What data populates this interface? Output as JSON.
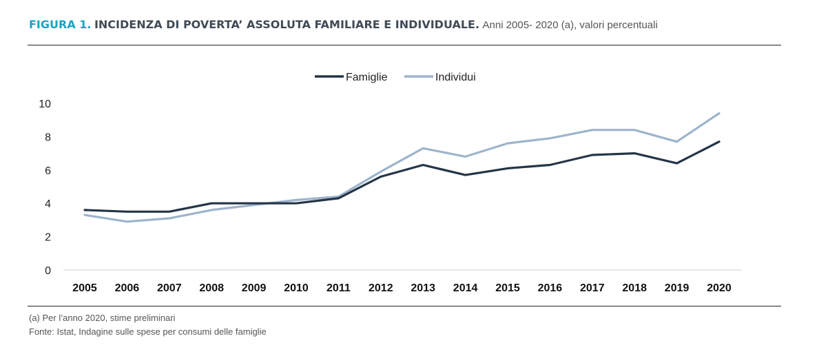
{
  "header": {
    "figure_label": "FIGURA 1.",
    "title": "INCIDENZA DI POVERTA’ ASSOLUTA FAMILIARE E INDIVIDUALE.",
    "subtitle": "Anni 2005- 2020 (a), valori percentuali"
  },
  "footer": {
    "note": "(a)   Per l’anno 2020, stime preliminari",
    "source": "Fonte: Istat, Indagine sulle spese per consumi delle famiglie"
  },
  "chart_data": {
    "type": "line",
    "title": "",
    "xlabel": "",
    "ylabel": "",
    "ylim": [
      0,
      10
    ],
    "yticks": [
      "0",
      "2",
      "4",
      "6",
      "8",
      "10"
    ],
    "categories": [
      "2005",
      "2006",
      "2007",
      "2008",
      "2009",
      "2010",
      "2011",
      "2012",
      "2013",
      "2014",
      "2015",
      "2016",
      "2017",
      "2018",
      "2019",
      "2020"
    ],
    "series": [
      {
        "name": "Famiglie",
        "color": "#243447",
        "values": [
          3.6,
          3.5,
          3.5,
          4.0,
          4.0,
          4.0,
          4.3,
          5.6,
          6.3,
          5.7,
          6.1,
          6.3,
          6.9,
          7.0,
          6.4,
          7.7
        ]
      },
      {
        "name": "Individui",
        "color": "#9db4cc",
        "values": [
          3.3,
          2.9,
          3.1,
          3.6,
          3.9,
          4.2,
          4.4,
          5.9,
          7.3,
          6.8,
          7.6,
          7.9,
          8.4,
          8.4,
          7.7,
          9.4
        ]
      }
    ],
    "grid": false,
    "legend_position": "top-center"
  }
}
